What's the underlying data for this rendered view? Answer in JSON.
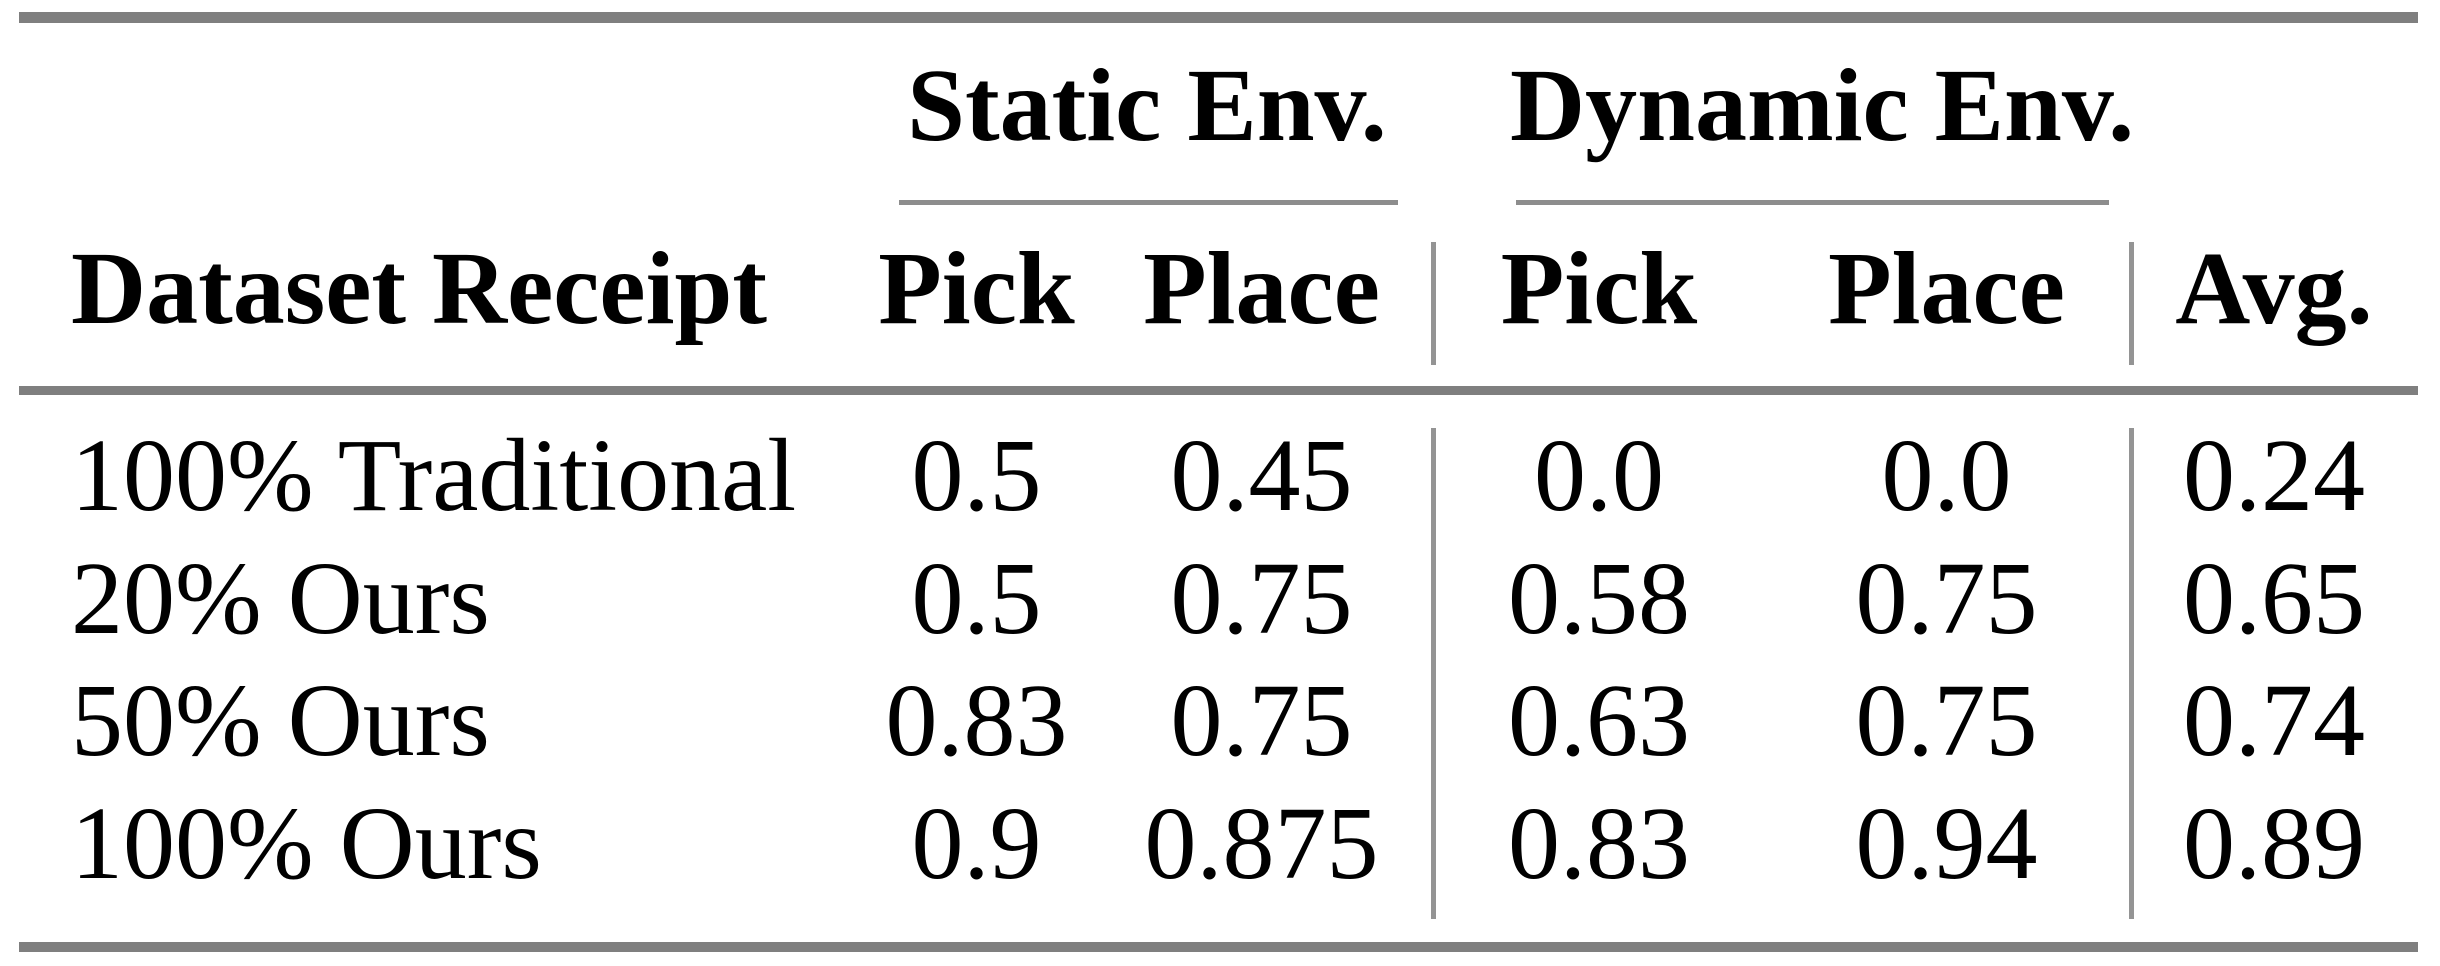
{
  "colors": {
    "background": "#ffffff",
    "text": "#000000",
    "rule_thick": "#7f7f7f",
    "rule_thin": "#949494"
  },
  "table": {
    "group_headers": [
      {
        "label": "Static Env."
      },
      {
        "label": "Dynamic Env."
      }
    ],
    "columns": [
      "Dataset Receipt",
      "Pick",
      "Place",
      "Pick",
      "Place",
      "Avg."
    ],
    "rows": [
      {
        "label": "100% Traditional",
        "values": [
          "0.5",
          "0.45",
          "0.0",
          "0.0",
          "0.24"
        ]
      },
      {
        "label": "20% Ours",
        "values": [
          "0.5",
          "0.75",
          "0.58",
          "0.75",
          "0.65"
        ]
      },
      {
        "label": "50% Ours",
        "values": [
          "0.83",
          "0.75",
          "0.63",
          "0.75",
          "0.74"
        ]
      },
      {
        "label": "100% Ours",
        "values": [
          "0.9",
          "0.875",
          "0.83",
          "0.94",
          "0.89"
        ]
      }
    ]
  }
}
